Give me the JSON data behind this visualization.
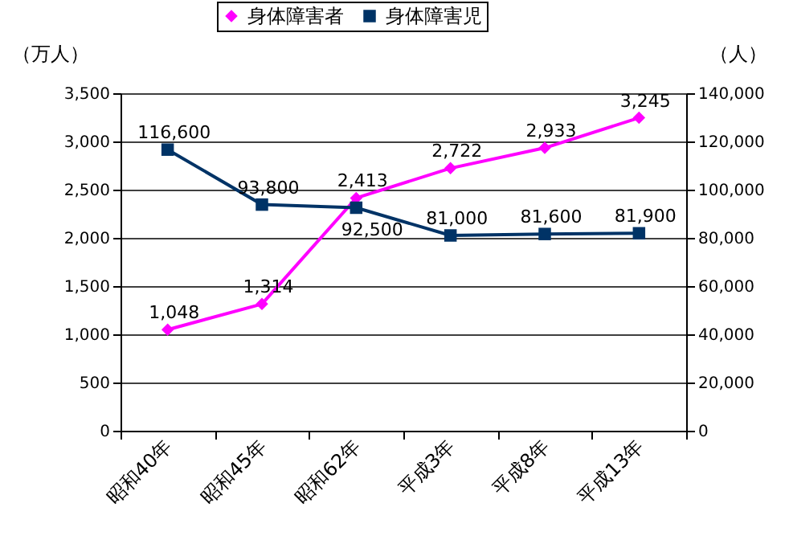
{
  "chart_data": {
    "type": "line",
    "categories": [
      "昭和40年",
      "昭和45年",
      "昭和62年",
      "平成3年",
      "平成8年",
      "平成13年"
    ],
    "series": [
      {
        "name": "身体障害者",
        "color": "#ff00ff",
        "marker": "diamond",
        "values": [
          1048,
          1314,
          2413,
          2722,
          2933,
          3245
        ],
        "value_labels": [
          "1,048",
          "1,314",
          "2,413",
          "2,722",
          "2,933",
          "3,245"
        ]
      },
      {
        "name": "身体障害児",
        "color": "#003366",
        "marker": "square",
        "axis": "y2",
        "values": [
          116600,
          93800,
          92500,
          81000,
          81600,
          81900
        ],
        "value_labels": [
          "116,600",
          "93,800",
          "92,500",
          "81,000",
          "81,600",
          "81,900"
        ]
      }
    ],
    "ylabel": "（万人）",
    "y2label": "（人）",
    "ylim": [
      0,
      3500
    ],
    "yticks": [
      0,
      {
        "value": 500,
        "label": "500"
      },
      {
        "value": 1000,
        "label": "1,000"
      },
      {
        "value": 1500,
        "label": "1,500"
      },
      {
        "value": 2000,
        "label": "2,000"
      },
      {
        "value": 2500,
        "label": "2,500"
      },
      {
        "value": 3000,
        "label": "3,000"
      },
      {
        "value": 3500,
        "label": "3,500"
      }
    ],
    "y2lim": [
      0,
      140000
    ],
    "y2ticks": [
      0,
      {
        "value": 20000,
        "label": "20,000"
      },
      {
        "value": 40000,
        "label": "40,000"
      },
      {
        "value": 60000,
        "label": "60,000"
      },
      {
        "value": 80000,
        "label": "80,000"
      },
      {
        "value": 100000,
        "label": "100,000"
      },
      {
        "value": 120000,
        "label": "120,000"
      },
      {
        "value": 140000,
        "label": "140,000"
      }
    ],
    "grid": "y",
    "legend": "top"
  }
}
